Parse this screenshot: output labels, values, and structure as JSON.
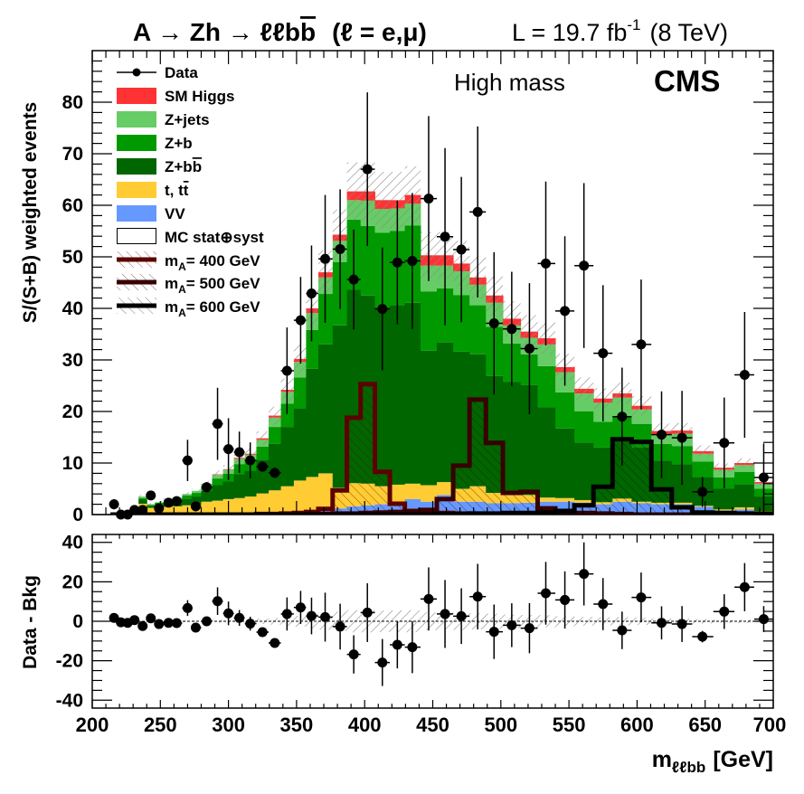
{
  "header": {
    "title_main": "A → Zh → ℓℓb",
    "title_bbar": "b",
    "title_tail": "(ℓ = e,μ)",
    "lumi_main": "L = 19.7 fb",
    "lumi_sup": "-1",
    "lumi_tail": "(8 TeV)",
    "category": "High mass",
    "experiment": "CMS"
  },
  "legend": {
    "data": "Data",
    "sm_higgs": "SM Higgs",
    "zjets": "Z+jets",
    "zb": "Z+b",
    "zbb_main": "Z+b",
    "zbb_bar": "b",
    "tt_main": "t, t",
    "tt_bar": "t",
    "vv": "VV",
    "mc_unc": "MC stat⊕syst",
    "sig400_m": "m",
    "sig400_sub": "A",
    "sig400_rest": "= 400 GeV",
    "sig500_m": "m",
    "sig500_sub": "A",
    "sig500_rest": "= 500 GeV",
    "sig600_m": "m",
    "sig600_sub": "A",
    "sig600_rest": "= 600 GeV"
  },
  "chart_data": [
    {
      "type": "bar",
      "stacked": true,
      "ylabel": "S/(S+B) weighted events",
      "xlim": [
        200,
        700
      ],
      "ylim": [
        0,
        90
      ],
      "yticks": [
        "0",
        "10",
        "20",
        "30",
        "40",
        "50",
        "60",
        "70",
        "80"
      ],
      "grid": false,
      "legend_position": "top-left",
      "bin_centers": [
        216,
        221,
        226,
        231,
        237,
        243,
        249,
        256,
        262,
        270,
        276,
        284,
        292,
        300,
        308,
        316,
        325,
        334,
        343,
        353,
        361,
        371,
        382,
        392,
        402,
        413,
        424,
        435,
        447,
        459,
        471,
        483,
        495,
        508,
        521,
        533,
        547,
        561,
        575,
        589,
        603,
        618,
        633,
        648,
        664,
        679,
        693
      ],
      "mc_unc_rel": 0.09,
      "backgrounds": [
        {
          "name": "SM Higgs",
          "color": "#ff3333",
          "values": [
            0,
            0,
            0,
            0,
            0,
            0,
            0,
            0,
            0,
            0,
            0,
            0,
            0.1,
            0.1,
            0.2,
            0.2,
            0.3,
            0.4,
            0.4,
            0.6,
            0.9,
            1.0,
            1.2,
            1.7,
            1.8,
            1.7,
            1.6,
            1.7,
            2.0,
            2.0,
            1.5,
            1.4,
            1.4,
            1.3,
            1.2,
            1.2,
            1.0,
            0.9,
            0.8,
            0.8,
            0.7,
            0.6,
            0.6,
            0.5,
            0.4,
            0.4,
            0.3
          ]
        },
        {
          "name": "Z+jets",
          "color": "#66cc66",
          "values": [
            0,
            0,
            0,
            0,
            0.3,
            0.1,
            0.1,
            0.2,
            0.2,
            0.3,
            0.4,
            0.5,
            0.7,
            0.8,
            1.0,
            1.1,
            1.3,
            1.8,
            2.3,
            3.0,
            3.3,
            3.2,
            4.1,
            3.8,
            4.9,
            4.6,
            4.4,
            4.2,
            5.0,
            4.4,
            4.6,
            4.0,
            4.7,
            3.5,
            3.2,
            4.2,
            3.9,
            3.5,
            3.7,
            3.7,
            2.8,
            1.9,
            2.4,
            1.5,
            1.5,
            1.3,
            1.0
          ]
        },
        {
          "name": "Z+b",
          "color": "#009900",
          "values": [
            0,
            0,
            0,
            0,
            0.3,
            0.2,
            0.3,
            0.4,
            0.5,
            0.6,
            0.7,
            0.9,
            1.3,
            1.5,
            2.0,
            2.0,
            2.6,
            3.3,
            4.5,
            6.0,
            7.5,
            9.8,
            12.3,
            13.6,
            13.5,
            14.4,
            14.4,
            15.0,
            11.5,
            10.5,
            11.0,
            9.5,
            9.5,
            7.5,
            6.0,
            8.0,
            7.0,
            6.0,
            5.0,
            4.8,
            4.5,
            3.2,
            3.5,
            3.0,
            2.2,
            2.4,
            1.5
          ]
        },
        {
          "name": "Z+bb̄",
          "color": "#006600",
          "values": [
            0.1,
            0.1,
            0.1,
            0.2,
            0.8,
            0.4,
            0.6,
            0.8,
            1.0,
            1.3,
            1.6,
            2.1,
            3.0,
            3.4,
            4.6,
            5.0,
            6.5,
            9.0,
            11.5,
            14.0,
            21.0,
            25.0,
            31.5,
            37.5,
            36.5,
            34.8,
            34.8,
            35.1,
            26.1,
            27.1,
            26.6,
            25.6,
            22.7,
            21.7,
            21.3,
            17.5,
            13.5,
            11.2,
            10.6,
            11.1,
            10.6,
            8.2,
            7.5,
            5.6,
            4.0,
            4.5,
            2.8
          ]
        },
        {
          "name": "t, tt̄",
          "color": "#ffcc33",
          "values": [
            0.1,
            0.1,
            0.2,
            0.3,
            2.0,
            1.2,
            1.3,
            1.4,
            1.5,
            1.7,
            1.8,
            2.3,
            2.5,
            2.8,
            3.0,
            3.2,
            3.8,
            4.3,
            5.0,
            6.0,
            6.5,
            7.0,
            4.0,
            4.5,
            4.2,
            3.5,
            3.3,
            3.0,
            3.2,
            2.5,
            2.5,
            3.0,
            2.0,
            1.8,
            1.5,
            0.8,
            0.7,
            0.5,
            0.4,
            0.6,
            0.3,
            0.3,
            0.3,
            0.2,
            0.2,
            0.4,
            0.1
          ]
        },
        {
          "name": "VV",
          "color": "#6699ff",
          "values": [
            0,
            0,
            0,
            0,
            0.1,
            0.1,
            0.1,
            0.1,
            0.1,
            0.1,
            0.1,
            0.2,
            0.2,
            0.2,
            0.2,
            0.3,
            0.3,
            0.4,
            0.5,
            0.6,
            0.8,
            1.0,
            1.2,
            1.6,
            1.8,
            2.0,
            2.5,
            3.0,
            2.5,
            3.8,
            2.5,
            2.5,
            2.2,
            2.2,
            2.3,
            2.5,
            2.5,
            2.3,
            2.0,
            2.5,
            2.2,
            2.0,
            2.0,
            1.5,
            0.8,
            1.0,
            0.6
          ]
        }
      ],
      "signals": [
        {
          "name": "mA= 400 GeV",
          "color": "#5c0000",
          "values": [
            0,
            0,
            0,
            0,
            0,
            0,
            0,
            0,
            0,
            0,
            0,
            0,
            0,
            0,
            0,
            0,
            0.1,
            0.1,
            0.2,
            0.3,
            0.5,
            1.1,
            4.7,
            18.8,
            25.3,
            8.3,
            2.1,
            0.7,
            0.5,
            0.3,
            0.2,
            0.1,
            0,
            0,
            0,
            0,
            0,
            0,
            0,
            0,
            0,
            0,
            0,
            0,
            0,
            0,
            0
          ]
        },
        {
          "name": "mA= 500 GeV",
          "color": "#380000",
          "values": [
            0,
            0,
            0,
            0,
            0,
            0,
            0,
            0,
            0,
            0,
            0,
            0,
            0,
            0,
            0,
            0,
            0,
            0,
            0,
            0,
            0.1,
            0.1,
            0.2,
            0.2,
            0.3,
            0.4,
            0.5,
            0.6,
            0.9,
            3.0,
            9.5,
            22.3,
            13.9,
            4.2,
            4.4,
            1.2,
            0.5,
            0.3,
            0.2,
            0.1,
            0,
            0,
            0,
            0,
            0,
            0,
            0
          ]
        },
        {
          "name": "mA= 600 GeV",
          "color": "#000000",
          "values": [
            0,
            0,
            0,
            0,
            0,
            0,
            0,
            0,
            0,
            0,
            0,
            0,
            0,
            0,
            0,
            0,
            0,
            0,
            0,
            0,
            0,
            0,
            0,
            0,
            0,
            0,
            0,
            0,
            0,
            0.1,
            0.1,
            0.2,
            0.2,
            0.3,
            0.3,
            0.4,
            0.7,
            1.8,
            5.4,
            14.6,
            14.1,
            4.9,
            1.4,
            0.4,
            0.3,
            0.2,
            0.2
          ]
        }
      ],
      "data": {
        "name": "Data",
        "values": [
          2.0,
          0,
          0,
          0.9,
          0.9,
          3.7,
          1.2,
          2.3,
          2.6,
          10.5,
          1.6,
          5.3,
          17.6,
          12.7,
          12.1,
          10.5,
          9.3,
          8.1,
          27.9,
          37.7,
          42.9,
          49.6,
          51.5,
          45.6,
          67.0,
          39.9,
          48.9,
          49.2,
          61.3,
          53.9,
          51.4,
          58.7,
          37.1,
          36.0,
          32.2,
          48.7,
          39.5,
          48.3,
          31.3,
          19.0,
          33.0,
          15.5,
          14.9,
          4.4,
          13.9,
          27.1,
          7.2
        ],
        "errors": [
          1.0,
          0.5,
          0.5,
          0.5,
          0.5,
          0.5,
          0.5,
          0.5,
          0.5,
          4,
          1,
          1,
          7,
          6,
          4,
          3.5,
          1,
          1,
          8.4,
          8.4,
          9.3,
          12.4,
          11.6,
          9.7,
          14.9,
          11.9,
          12,
          13.2,
          16,
          17.2,
          14.1,
          16.6,
          13.8,
          11.1,
          12.7,
          15.9,
          14.5,
          16,
          13.2,
          9.5,
          12.6,
          8.4,
          9.1,
          2.9,
          8.8,
          12.2,
          6.6
        ]
      }
    },
    {
      "type": "scatter",
      "ylabel": "Data - Bkg",
      "xlabel_main": "m",
      "xlabel_sub": "ℓℓbb",
      "xlabel_unit": "[GeV]",
      "xlim": [
        200,
        700
      ],
      "ylim": [
        -44,
        44
      ],
      "xticks": [
        "200",
        "250",
        "300",
        "350",
        "400",
        "450",
        "500",
        "550",
        "600",
        "650",
        "700"
      ],
      "yticks": [
        "-40",
        "-20",
        "0",
        "20",
        "40"
      ],
      "values": [
        1.7,
        -0.5,
        -0.8,
        0.6,
        -2.4,
        1.5,
        -1.4,
        -0.8,
        -0.9,
        6.7,
        -3.2,
        0,
        10.2,
        4.0,
        1.7,
        -1.2,
        -5.5,
        -11,
        3.7,
        7.0,
        2.7,
        2.1,
        -2.7,
        -16.8,
        4.4,
        -20.9,
        -11.9,
        -13.1,
        11.3,
        3.7,
        2.6,
        12.5,
        -5.3,
        -2.0,
        -3.5,
        14.2,
        10.8,
        24.0,
        8.7,
        -4.6,
        12.1,
        -0.8,
        -1.4,
        -7.8,
        4.9,
        17.3,
        1.1
      ],
      "errors": [
        1.0,
        0.5,
        0.5,
        0.5,
        0.5,
        0.5,
        0.5,
        0.5,
        0.5,
        4,
        1,
        1,
        7,
        6,
        4,
        3.5,
        1,
        1,
        8.4,
        8.4,
        9.3,
        12.4,
        11.6,
        9.7,
        14.9,
        11.9,
        12,
        13.2,
        16,
        17.2,
        14.1,
        16.6,
        13.8,
        11.1,
        12.7,
        15.9,
        14.5,
        16,
        13.2,
        9.5,
        12.6,
        8.4,
        9.1,
        2.9,
        8.8,
        12.2,
        6.6
      ]
    }
  ]
}
